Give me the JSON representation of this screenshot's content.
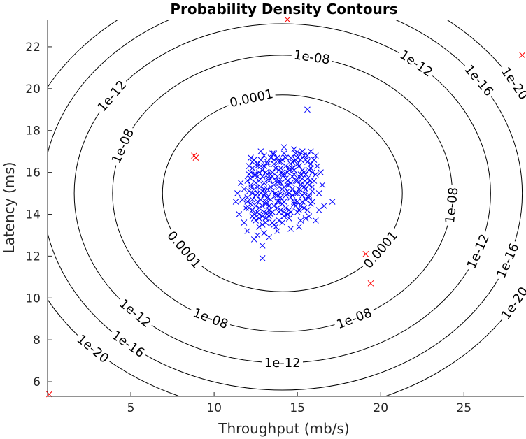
{
  "chart_data": {
    "type": "scatter",
    "title": "Probability Density Contours",
    "xlabel": "Throughput (mb/s)",
    "ylabel": "Latency (ms)",
    "xlim": [
      0,
      28.6
    ],
    "ylim": [
      5.3,
      23.3
    ],
    "xticks": [
      5,
      10,
      15,
      20,
      25
    ],
    "yticks": [
      6,
      8,
      10,
      12,
      14,
      16,
      18,
      20,
      22
    ],
    "grid": false,
    "contour_center": [
      14.1,
      15.0
    ],
    "contours": [
      {
        "label": "0.0001",
        "rx": 7.2,
        "ry": 4.7,
        "labels_at_deg": [
          105,
          215,
          325
        ]
      },
      {
        "label": "1e-08",
        "rx": 10.2,
        "ry": 6.6,
        "labels_at_deg": [
          80,
          160,
          245,
          295,
          355
        ]
      },
      {
        "label": "1e-12",
        "rx": 12.5,
        "ry": 8.1,
        "labels_at_deg": [
          50,
          145,
          225,
          270,
          340
        ]
      },
      {
        "label": "1e-16",
        "rx": 14.4,
        "ry": 9.4,
        "labels_at_deg": [
          35,
          170,
          230,
          340
        ]
      },
      {
        "label": "1e-20",
        "rx": 16.1,
        "ry": 10.5,
        "labels_at_deg": [
          30,
          225,
          330
        ]
      }
    ],
    "series": [
      {
        "color": "#0000ff",
        "marker": "x",
        "points": [
          [
            13.2,
            15.2
          ],
          [
            14.1,
            15.9
          ],
          [
            14.7,
            16.5
          ],
          [
            13.5,
            14.1
          ],
          [
            12.6,
            15.3
          ],
          [
            15.0,
            15.6
          ],
          [
            13.8,
            14.6
          ],
          [
            14.4,
            15.1
          ],
          [
            12.9,
            16.1
          ],
          [
            15.4,
            16.0
          ],
          [
            13.0,
            14.9
          ],
          [
            14.9,
            14.4
          ],
          [
            13.6,
            16.4
          ],
          [
            12.3,
            14.7
          ],
          [
            14.2,
            13.9
          ],
          [
            15.5,
            15.2
          ],
          [
            13.3,
            15.7
          ],
          [
            14.6,
            15.5
          ],
          [
            12.8,
            15.0
          ],
          [
            13.9,
            15.3
          ],
          [
            15.2,
            16.6
          ],
          [
            13.1,
            13.8
          ],
          [
            14.0,
            14.8
          ],
          [
            12.5,
            15.9
          ],
          [
            15.7,
            14.9
          ],
          [
            13.7,
            15.0
          ],
          [
            14.3,
            16.3
          ],
          [
            12.7,
            14.3
          ],
          [
            15.1,
            15.8
          ],
          [
            13.4,
            16.7
          ],
          [
            14.5,
            14.2
          ],
          [
            12.2,
            15.4
          ],
          [
            13.9,
            13.7
          ],
          [
            15.6,
            15.7
          ],
          [
            13.0,
            15.5
          ],
          [
            14.8,
            15.9
          ],
          [
            12.4,
            14.0
          ],
          [
            14.2,
            16.9
          ],
          [
            13.6,
            14.4
          ],
          [
            15.3,
            14.6
          ],
          [
            12.1,
            15.1
          ],
          [
            14.0,
            15.5
          ],
          [
            13.5,
            16.0
          ],
          [
            15.8,
            16.2
          ],
          [
            12.9,
            13.5
          ],
          [
            14.6,
            14.8
          ],
          [
            13.2,
            16.4
          ],
          [
            15.0,
            14.1
          ],
          [
            12.6,
            14.6
          ],
          [
            14.4,
            16.0
          ],
          [
            13.8,
            15.8
          ],
          [
            15.4,
            15.3
          ],
          [
            12.3,
            16.2
          ],
          [
            13.7,
            13.4
          ],
          [
            14.9,
            16.9
          ],
          [
            12.0,
            14.8
          ],
          [
            14.1,
            14.5
          ],
          [
            15.6,
            16.5
          ],
          [
            13.3,
            14.2
          ],
          [
            14.7,
            15.2
          ],
          [
            12.8,
            16.6
          ],
          [
            13.9,
            16.5
          ],
          [
            15.2,
            14.4
          ],
          [
            12.5,
            13.7
          ],
          [
            14.3,
            15.7
          ],
          [
            13.1,
            15.0
          ],
          [
            15.9,
            15.1
          ],
          [
            12.2,
            16.0
          ],
          [
            14.5,
            13.8
          ],
          [
            13.6,
            15.4
          ],
          [
            15.1,
            16.3
          ],
          [
            12.7,
            15.6
          ],
          [
            14.0,
            16.2
          ],
          [
            13.4,
            14.7
          ],
          [
            15.7,
            13.9
          ],
          [
            12.4,
            15.2
          ],
          [
            14.8,
            14.6
          ],
          [
            13.0,
            16.8
          ],
          [
            15.3,
            15.5
          ],
          [
            12.9,
            14.4
          ],
          [
            14.2,
            15.3
          ],
          [
            13.5,
            13.6
          ],
          [
            15.5,
            14.7
          ],
          [
            12.1,
            14.3
          ],
          [
            14.6,
            16.7
          ],
          [
            13.8,
            14.9
          ],
          [
            15.0,
            15.0
          ],
          [
            12.6,
            16.4
          ],
          [
            14.4,
            14.0
          ],
          [
            13.2,
            15.9
          ],
          [
            15.8,
            15.6
          ],
          [
            12.3,
            13.9
          ],
          [
            14.1,
            16.6
          ],
          [
            13.7,
            15.6
          ],
          [
            15.2,
            13.7
          ],
          [
            12.8,
            15.3
          ],
          [
            14.9,
            15.6
          ],
          [
            13.3,
            13.9
          ],
          [
            15.4,
            16.8
          ],
          [
            12.5,
            14.9
          ],
          [
            14.3,
            14.3
          ],
          [
            13.9,
            16.1
          ],
          [
            15.6,
            14.2
          ],
          [
            12.2,
            15.7
          ],
          [
            14.7,
            15.8
          ],
          [
            13.1,
            14.5
          ],
          [
            15.1,
            16.9
          ],
          [
            12.7,
            13.8
          ],
          [
            14.0,
            15.0
          ],
          [
            13.6,
            16.6
          ],
          [
            15.3,
            14.9
          ],
          [
            12.4,
            16.6
          ],
          [
            14.5,
            15.4
          ],
          [
            13.0,
            14.1
          ],
          [
            15.7,
            15.4
          ],
          [
            12.9,
            15.8
          ],
          [
            14.2,
            14.6
          ],
          [
            13.4,
            15.3
          ],
          [
            15.9,
            16.0
          ],
          [
            12.0,
            15.6
          ],
          [
            14.8,
            16.1
          ],
          [
            13.8,
            14.3
          ],
          [
            15.0,
            16.4
          ],
          [
            12.6,
            14.1
          ],
          [
            14.4,
            15.6
          ],
          [
            13.2,
            16.5
          ],
          [
            15.5,
            15.9
          ],
          [
            12.3,
            15.0
          ],
          [
            14.1,
            13.6
          ],
          [
            13.7,
            14.9
          ],
          [
            15.2,
            15.4
          ],
          [
            12.8,
            14.7
          ],
          [
            14.6,
            16.4
          ],
          [
            13.5,
            15.1
          ],
          [
            15.8,
            14.5
          ],
          [
            12.5,
            15.5
          ],
          [
            14.3,
            16.7
          ],
          [
            13.1,
            13.6
          ],
          [
            15.4,
            14.3
          ],
          [
            12.2,
            14.5
          ],
          [
            14.9,
            15.0
          ],
          [
            13.9,
            14.6
          ],
          [
            15.6,
            16.8
          ],
          [
            12.7,
            16.0
          ],
          [
            14.0,
            14.2
          ],
          [
            13.3,
            15.6
          ],
          [
            15.1,
            15.2
          ],
          [
            12.4,
            13.8
          ],
          [
            14.7,
            16.2
          ],
          [
            13.6,
            13.5
          ],
          [
            15.3,
            16.1
          ],
          [
            12.9,
            15.1
          ],
          [
            14.5,
            15.0
          ],
          [
            13.0,
            16.3
          ],
          [
            15.7,
            14.8
          ],
          [
            12.1,
            16.3
          ],
          [
            14.2,
            15.9
          ],
          [
            13.4,
            14.0
          ],
          [
            15.9,
            15.3
          ],
          [
            12.6,
            15.8
          ],
          [
            14.8,
            14.5
          ],
          [
            13.8,
            16.7
          ],
          [
            15.0,
            14.6
          ],
          [
            12.3,
            14.2
          ],
          [
            14.4,
            15.4
          ],
          [
            13.2,
            14.8
          ],
          [
            15.5,
            16.6
          ],
          [
            12.8,
            16.3
          ],
          [
            14.1,
            15.2
          ],
          [
            13.7,
            16.2
          ],
          [
            15.2,
            15.9
          ],
          [
            12.5,
            14.4
          ],
          [
            14.6,
            14.1
          ],
          [
            13.5,
            15.8
          ],
          [
            15.8,
            16.4
          ],
          [
            12.2,
            15.3
          ],
          [
            14.3,
            14.9
          ],
          [
            13.1,
            16.0
          ],
          [
            15.4,
            15.0
          ],
          [
            12.7,
            14.0
          ],
          [
            14.9,
            16.6
          ],
          [
            13.9,
            15.5
          ],
          [
            15.6,
            15.5
          ],
          [
            12.0,
            14.6
          ],
          [
            14.0,
            16.5
          ],
          [
            13.3,
            14.4
          ],
          [
            15.1,
            14.2
          ],
          [
            12.4,
            15.9
          ],
          [
            14.7,
            14.9
          ],
          [
            13.6,
            16.9
          ],
          [
            15.3,
            15.7
          ],
          [
            12.9,
            13.9
          ],
          [
            14.5,
            16.1
          ],
          [
            13.0,
            15.2
          ],
          [
            15.7,
            16.1
          ],
          [
            12.6,
            15.0
          ],
          [
            14.2,
            14.1
          ],
          [
            13.4,
            15.9
          ],
          [
            15.0,
            16.7
          ],
          [
            12.3,
            16.5
          ],
          [
            11.7,
            14.7
          ],
          [
            11.5,
            14.0
          ],
          [
            11.3,
            14.6
          ],
          [
            12.0,
            13.2
          ],
          [
            11.8,
            13.6
          ],
          [
            12.4,
            12.8
          ],
          [
            12.6,
            13.0
          ],
          [
            13.0,
            13.1
          ],
          [
            12.9,
            12.5
          ],
          [
            13.2,
            14.0
          ],
          [
            16.1,
            15.9
          ],
          [
            16.2,
            16.3
          ],
          [
            16.0,
            15.6
          ],
          [
            16.3,
            15.0
          ],
          [
            15.9,
            14.6
          ],
          [
            16.4,
            16.0
          ],
          [
            16.0,
            16.6
          ],
          [
            15.5,
            13.8
          ],
          [
            16.3,
            14.2
          ],
          [
            16.6,
            14.4
          ],
          [
            17.1,
            14.6
          ],
          [
            15.6,
            19.0
          ],
          [
            12.9,
            11.9
          ],
          [
            14.4,
            14.0
          ],
          [
            14.6,
            13.3
          ],
          [
            13.1,
            14.6
          ],
          [
            13.9,
            15.6
          ],
          [
            14.1,
            16.0
          ],
          [
            14.5,
            16.2
          ],
          [
            13.9,
            14.1
          ],
          [
            11.8,
            15.2
          ],
          [
            11.9,
            14.3
          ],
          [
            12.7,
            13.4
          ],
          [
            13.3,
            12.9
          ],
          [
            16.1,
            16.8
          ],
          [
            15.8,
            17.0
          ],
          [
            14.8,
            17.1
          ],
          [
            13.5,
            16.9
          ],
          [
            12.6,
            16.3
          ],
          [
            12.1,
            15.9
          ],
          [
            11.4,
            15.0
          ],
          [
            11.6,
            15.5
          ],
          [
            12.2,
            16.7
          ],
          [
            12.8,
            17.0
          ],
          [
            14.2,
            17.2
          ],
          [
            15.3,
            17.0
          ],
          [
            16.5,
            15.4
          ],
          [
            16.1,
            13.7
          ],
          [
            15.1,
            13.4
          ],
          [
            13.8,
            13.2
          ]
        ]
      },
      {
        "color": "#ff0000",
        "marker": "x",
        "points": [
          [
            14.4,
            23.3
          ],
          [
            28.5,
            21.6
          ],
          [
            8.8,
            16.8
          ],
          [
            8.9,
            16.7
          ],
          [
            19.1,
            12.1
          ],
          [
            19.4,
            10.7
          ],
          [
            0.1,
            5.4
          ]
        ]
      }
    ]
  }
}
